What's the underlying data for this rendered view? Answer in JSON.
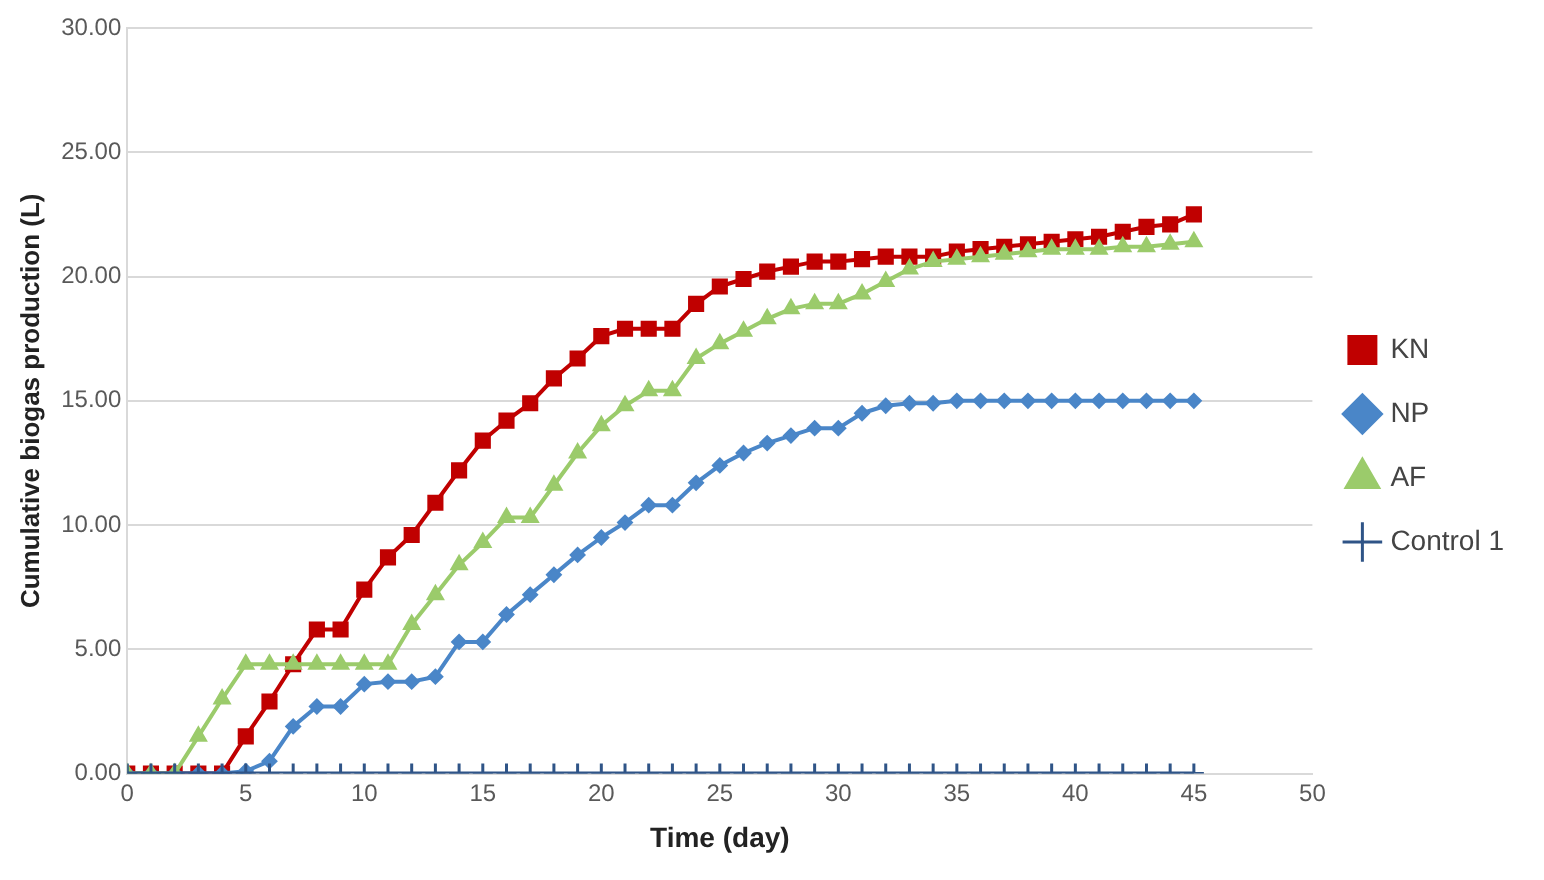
{
  "chart_data": {
    "type": "line",
    "xlabel": "Time (day)",
    "ylabel": "Cumulative biogas production (L)",
    "x": [
      0,
      1,
      2,
      3,
      4,
      5,
      6,
      7,
      8,
      9,
      10,
      11,
      12,
      13,
      14,
      15,
      16,
      17,
      18,
      19,
      20,
      21,
      22,
      23,
      24,
      25,
      26,
      27,
      28,
      29,
      30,
      31,
      32,
      33,
      34,
      35,
      36,
      37,
      38,
      39,
      40,
      41,
      42,
      43,
      44,
      45
    ],
    "xlim": [
      0,
      50
    ],
    "xticks": [
      0,
      5,
      10,
      15,
      20,
      25,
      30,
      35,
      40,
      45,
      50
    ],
    "ylim": [
      0,
      30
    ],
    "yticks": [
      {
        "value": 0,
        "label": "0.00"
      },
      {
        "value": 5,
        "label": "5.00"
      },
      {
        "value": 10,
        "label": "10.00"
      },
      {
        "value": 15,
        "label": "15.00"
      },
      {
        "value": 20,
        "label": "20.00"
      },
      {
        "value": 25,
        "label": "25.00"
      },
      {
        "value": 30,
        "label": "30.00"
      }
    ],
    "grid": "y",
    "legend": "right",
    "line_style": "solid",
    "series": [
      {
        "name": "KN",
        "color": "#c00000",
        "marker": "square",
        "values": [
          0,
          0,
          0,
          0,
          0,
          1.5,
          2.9,
          4.4,
          5.8,
          5.8,
          7.4,
          8.7,
          9.6,
          10.9,
          12.2,
          13.4,
          14.2,
          14.9,
          15.9,
          16.7,
          17.6,
          17.9,
          17.9,
          17.9,
          18.9,
          19.6,
          19.9,
          20.2,
          20.4,
          20.6,
          20.6,
          20.7,
          20.8,
          20.8,
          20.8,
          21.0,
          21.1,
          21.2,
          21.3,
          21.4,
          21.5,
          21.6,
          21.8,
          22.0,
          22.1,
          22.5
        ]
      },
      {
        "name": "NP",
        "color": "#4a86c8",
        "marker": "diamond",
        "values": [
          0,
          0,
          0,
          0,
          0,
          0.1,
          0.5,
          1.9,
          2.7,
          2.7,
          3.6,
          3.7,
          3.7,
          3.9,
          5.3,
          5.3,
          6.4,
          7.2,
          8.0,
          8.8,
          9.5,
          10.1,
          10.8,
          10.8,
          11.7,
          12.4,
          12.9,
          13.3,
          13.6,
          13.9,
          13.9,
          14.5,
          14.8,
          14.9,
          14.9,
          15.0,
          15.0,
          15.0,
          15.0,
          15.0,
          15.0,
          15.0,
          15.0,
          15.0,
          15.0,
          15.0
        ]
      },
      {
        "name": "AF",
        "color": "#9bcb6b",
        "marker": "triangle",
        "values": [
          0,
          0,
          0,
          1.5,
          3.0,
          4.4,
          4.4,
          4.4,
          4.4,
          4.4,
          4.4,
          4.4,
          6.0,
          7.2,
          8.4,
          9.3,
          10.3,
          10.3,
          11.6,
          12.9,
          14.0,
          14.8,
          15.4,
          15.4,
          16.7,
          17.3,
          17.8,
          18.3,
          18.7,
          18.9,
          18.9,
          19.3,
          19.8,
          20.3,
          20.6,
          20.7,
          20.8,
          20.9,
          21.0,
          21.1,
          21.1,
          21.1,
          21.2,
          21.2,
          21.3,
          21.4
        ]
      },
      {
        "name": "Control 1",
        "color": "#2f5487",
        "marker": "cross",
        "values": [
          0,
          0,
          0,
          0,
          0,
          0,
          0,
          0,
          0,
          0,
          0,
          0,
          0,
          0,
          0,
          0,
          0,
          0,
          0,
          0,
          0,
          0,
          0,
          0,
          0,
          0,
          0,
          0,
          0,
          0,
          0,
          0,
          0,
          0,
          0,
          0,
          0,
          0,
          0,
          0,
          0,
          0,
          0,
          0,
          0,
          0
        ]
      }
    ]
  }
}
